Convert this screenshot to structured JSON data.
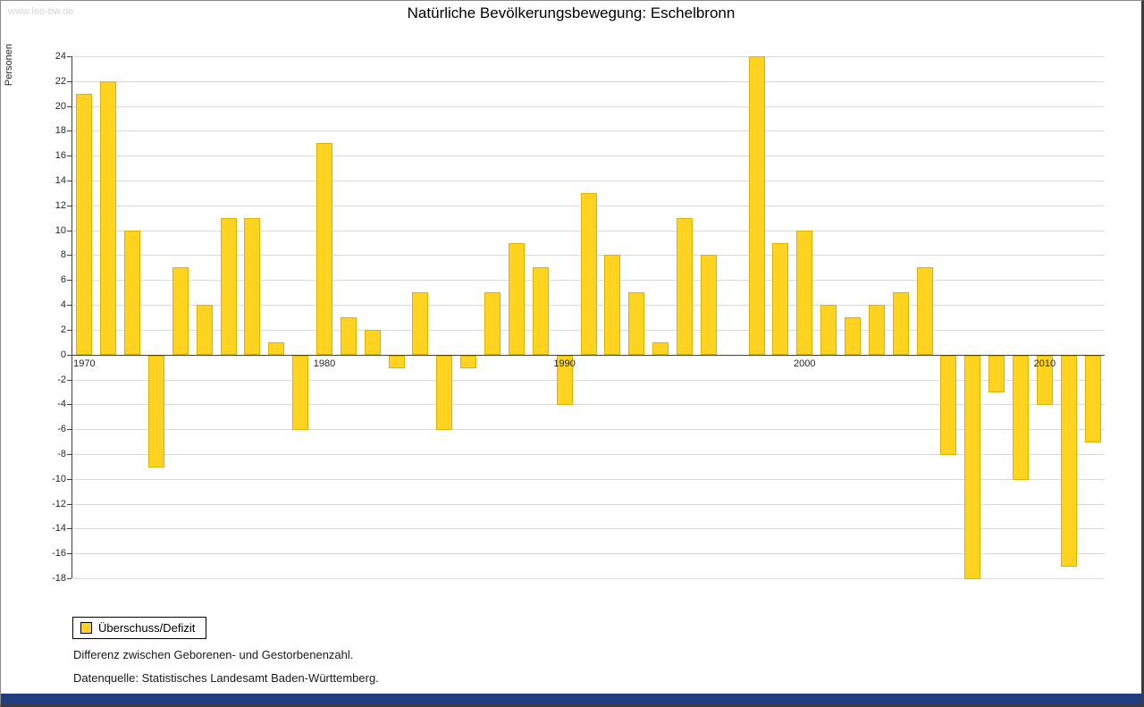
{
  "page": {
    "watermark": "www.leo-bw.de",
    "title": "Natürliche Bevölkerungsbewegung: Eschelbronn",
    "footnote1": "Differenz zwischen Geborenen- und Gestorbenenzahl.",
    "footnote2": "Datenquelle: Statistisches Landesamt Baden-Württemberg.",
    "footer_color": "#1f3d80"
  },
  "legend": {
    "label": "Überschuss/Defizit",
    "swatch_color": "#ffd320"
  },
  "chart_data": {
    "type": "bar",
    "title": "Natürliche Bevölkerungsbewegung: Eschelbronn",
    "xlabel": "",
    "ylabel": "Personen",
    "ylim": [
      -18,
      24
    ],
    "ytick_step": 2,
    "grid": true,
    "legend_position": "bottom-left",
    "legend_entries": [
      "Überschuss/Defizit"
    ],
    "bar_color": "#ffd320",
    "bar_border_color": "#dcb400",
    "xtick_labels": [
      1970,
      1980,
      1990,
      2000,
      2010
    ],
    "years": [
      1970,
      1971,
      1972,
      1973,
      1974,
      1975,
      1976,
      1977,
      1978,
      1979,
      1980,
      1981,
      1982,
      1983,
      1984,
      1985,
      1986,
      1987,
      1988,
      1989,
      1990,
      1991,
      1992,
      1993,
      1994,
      1995,
      1996,
      1997,
      1998,
      1999,
      2000,
      2001,
      2002,
      2003,
      2004,
      2005,
      2006,
      2007,
      2008,
      2009,
      2010,
      2011,
      2012
    ],
    "values": [
      21,
      22,
      10,
      -9,
      7,
      4,
      11,
      11,
      1,
      -6,
      17,
      3,
      2,
      -1,
      5,
      -6,
      -1,
      5,
      9,
      7,
      -4,
      13,
      8,
      5,
      1,
      11,
      8,
      0,
      24,
      9,
      10,
      4,
      3,
      4,
      5,
      7,
      -8,
      -18,
      -3,
      -10,
      -4,
      -17,
      -7
    ]
  }
}
